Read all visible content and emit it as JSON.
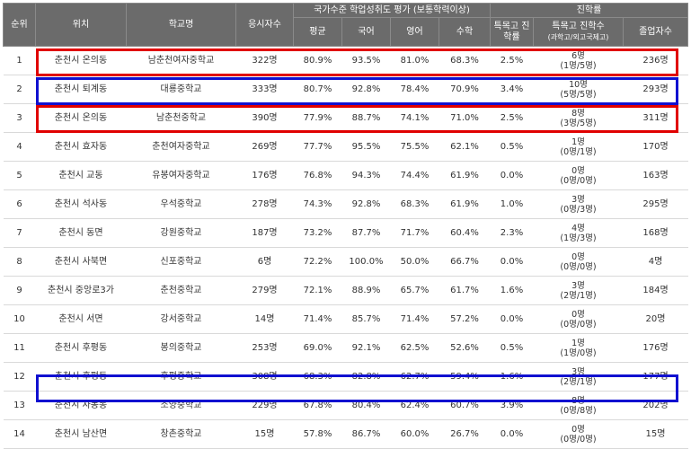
{
  "colors": {
    "header_bg": "#6b6b6b",
    "header_text": "#ffffff",
    "red_highlight": "#e00000",
    "blue_highlight": "#1010d0"
  },
  "header": {
    "rank": "순위",
    "location": "위치",
    "school": "학교명",
    "test_takers": "응시자수",
    "group_national": "국가수준 학업성취도 평가 (보통학력이상)",
    "group_advance": "진학률",
    "avg": "평균",
    "korean": "국어",
    "english": "영어",
    "math": "수학",
    "special_rate": "특목고 진학률",
    "special_count": "특목고 진학수",
    "special_count_sub": "(과학고/외고국제고)",
    "graduates": "졸업자수"
  },
  "rows": [
    {
      "rank": "1",
      "location": "춘천시 온의동",
      "school": "남춘천여자중학교",
      "takers": "322명",
      "avg": "80.9%",
      "kor": "93.5%",
      "eng": "81.0%",
      "math": "68.3%",
      "rate": "2.5%",
      "count_top": "6명",
      "count_bot": "(1명/5명)",
      "grads": "236명"
    },
    {
      "rank": "2",
      "location": "춘천시 퇴계동",
      "school": "대룡중학교",
      "takers": "333명",
      "avg": "80.7%",
      "kor": "92.8%",
      "eng": "78.4%",
      "math": "70.9%",
      "rate": "3.4%",
      "count_top": "10명",
      "count_bot": "(5명/5명)",
      "grads": "293명"
    },
    {
      "rank": "3",
      "location": "춘천시 온의동",
      "school": "남춘천중학교",
      "takers": "390명",
      "avg": "77.9%",
      "kor": "88.7%",
      "eng": "74.1%",
      "math": "71.0%",
      "rate": "2.5%",
      "count_top": "8명",
      "count_bot": "(3명/5명)",
      "grads": "311명"
    },
    {
      "rank": "4",
      "location": "춘천시 효자동",
      "school": "춘천여자중학교",
      "takers": "269명",
      "avg": "77.7%",
      "kor": "95.5%",
      "eng": "75.5%",
      "math": "62.1%",
      "rate": "0.5%",
      "count_top": "1명",
      "count_bot": "(0명/1명)",
      "grads": "170명"
    },
    {
      "rank": "5",
      "location": "춘천시 교동",
      "school": "유봉여자중학교",
      "takers": "176명",
      "avg": "76.8%",
      "kor": "94.3%",
      "eng": "74.4%",
      "math": "61.9%",
      "rate": "0.0%",
      "count_top": "0명",
      "count_bot": "(0명/0명)",
      "grads": "163명"
    },
    {
      "rank": "6",
      "location": "춘천시 석사동",
      "school": "우석중학교",
      "takers": "278명",
      "avg": "74.3%",
      "kor": "92.8%",
      "eng": "68.3%",
      "math": "61.9%",
      "rate": "1.0%",
      "count_top": "3명",
      "count_bot": "(0명/3명)",
      "grads": "295명"
    },
    {
      "rank": "7",
      "location": "춘천시 동면",
      "school": "강원중학교",
      "takers": "187명",
      "avg": "73.2%",
      "kor": "87.7%",
      "eng": "71.7%",
      "math": "60.4%",
      "rate": "2.3%",
      "count_top": "4명",
      "count_bot": "(1명/3명)",
      "grads": "168명"
    },
    {
      "rank": "8",
      "location": "춘천시 사북면",
      "school": "신포중학교",
      "takers": "6명",
      "avg": "72.2%",
      "kor": "100.0%",
      "eng": "50.0%",
      "math": "66.7%",
      "rate": "0.0%",
      "count_top": "0명",
      "count_bot": "(0명/0명)",
      "grads": "4명"
    },
    {
      "rank": "9",
      "location": "춘천시 중앙로3가",
      "school": "춘천중학교",
      "takers": "279명",
      "avg": "72.1%",
      "kor": "88.9%",
      "eng": "65.7%",
      "math": "61.7%",
      "rate": "1.6%",
      "count_top": "3명",
      "count_bot": "(2명/1명)",
      "grads": "184명"
    },
    {
      "rank": "10",
      "location": "춘천시 서면",
      "school": "강서중학교",
      "takers": "14명",
      "avg": "71.4%",
      "kor": "85.7%",
      "eng": "71.4%",
      "math": "57.2%",
      "rate": "0.0%",
      "count_top": "0명",
      "count_bot": "(0명/0명)",
      "grads": "20명"
    },
    {
      "rank": "11",
      "location": "춘천시 후평동",
      "school": "봉의중학교",
      "takers": "253명",
      "avg": "69.0%",
      "kor": "92.1%",
      "eng": "62.5%",
      "math": "52.6%",
      "rate": "0.5%",
      "count_top": "1명",
      "count_bot": "(1명/0명)",
      "grads": "176명"
    },
    {
      "rank": "12",
      "location": "춘천시 후평동",
      "school": "후평중학교",
      "takers": "308명",
      "avg": "68.3%",
      "kor": "82.8%",
      "eng": "62.7%",
      "math": "59.4%",
      "rate": "1.6%",
      "count_top": "3명",
      "count_bot": "(2명/1명)",
      "grads": "177명"
    },
    {
      "rank": "13",
      "location": "춘천시 사농동",
      "school": "소양중학교",
      "takers": "229명",
      "avg": "67.8%",
      "kor": "80.4%",
      "eng": "62.4%",
      "math": "60.7%",
      "rate": "3.9%",
      "count_top": "8명",
      "count_bot": "(0명/8명)",
      "grads": "202명"
    },
    {
      "rank": "14",
      "location": "춘천시 남산면",
      "school": "창촌중학교",
      "takers": "15명",
      "avg": "57.8%",
      "kor": "86.7%",
      "eng": "60.0%",
      "math": "26.7%",
      "rate": "0.0%",
      "count_top": "0명",
      "count_bot": "(0명/0명)",
      "grads": "15명"
    }
  ]
}
